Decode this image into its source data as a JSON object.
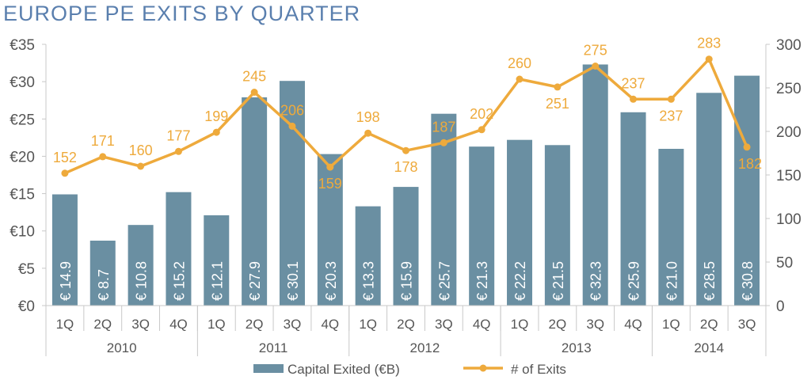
{
  "chart_data": {
    "type": "bar",
    "title": "EUROPE PE EXITS BY QUARTER",
    "categories": [
      "1Q",
      "2Q",
      "3Q",
      "4Q",
      "1Q",
      "2Q",
      "3Q",
      "4Q",
      "1Q",
      "2Q",
      "3Q",
      "4Q",
      "1Q",
      "2Q",
      "3Q",
      "4Q",
      "1Q",
      "2Q",
      "3Q"
    ],
    "groups": [
      {
        "label": "2010",
        "count": 4
      },
      {
        "label": "2011",
        "count": 4
      },
      {
        "label": "2012",
        "count": 4
      },
      {
        "label": "2013",
        "count": 4
      },
      {
        "label": "2014",
        "count": 3
      }
    ],
    "series": [
      {
        "name": "Capital Exited (€B)",
        "type": "bar",
        "axis": "left",
        "color": "#6a8fa2",
        "label_prefix": "€ ",
        "values": [
          14.9,
          8.7,
          10.8,
          15.2,
          12.1,
          27.9,
          30.1,
          20.3,
          13.3,
          15.9,
          25.7,
          21.3,
          22.2,
          21.5,
          32.3,
          25.9,
          21.0,
          28.5,
          30.8
        ]
      },
      {
        "name": "# of Exits",
        "type": "line",
        "axis": "right",
        "color": "#eeaa3c",
        "values": [
          152,
          171,
          160,
          177,
          199,
          245,
          206,
          159,
          198,
          178,
          187,
          202,
          260,
          251,
          275,
          237,
          237,
          283,
          182
        ]
      }
    ],
    "y_left": {
      "ticks": [
        "€0",
        "€5",
        "€10",
        "€15",
        "€20",
        "€25",
        "€30",
        "€35"
      ],
      "range": [
        0,
        35
      ]
    },
    "y_right": {
      "ticks": [
        "0",
        "50",
        "100",
        "150",
        "200",
        "250",
        "300"
      ],
      "range": [
        0,
        300
      ]
    },
    "legend": "bottom",
    "grid": false
  }
}
